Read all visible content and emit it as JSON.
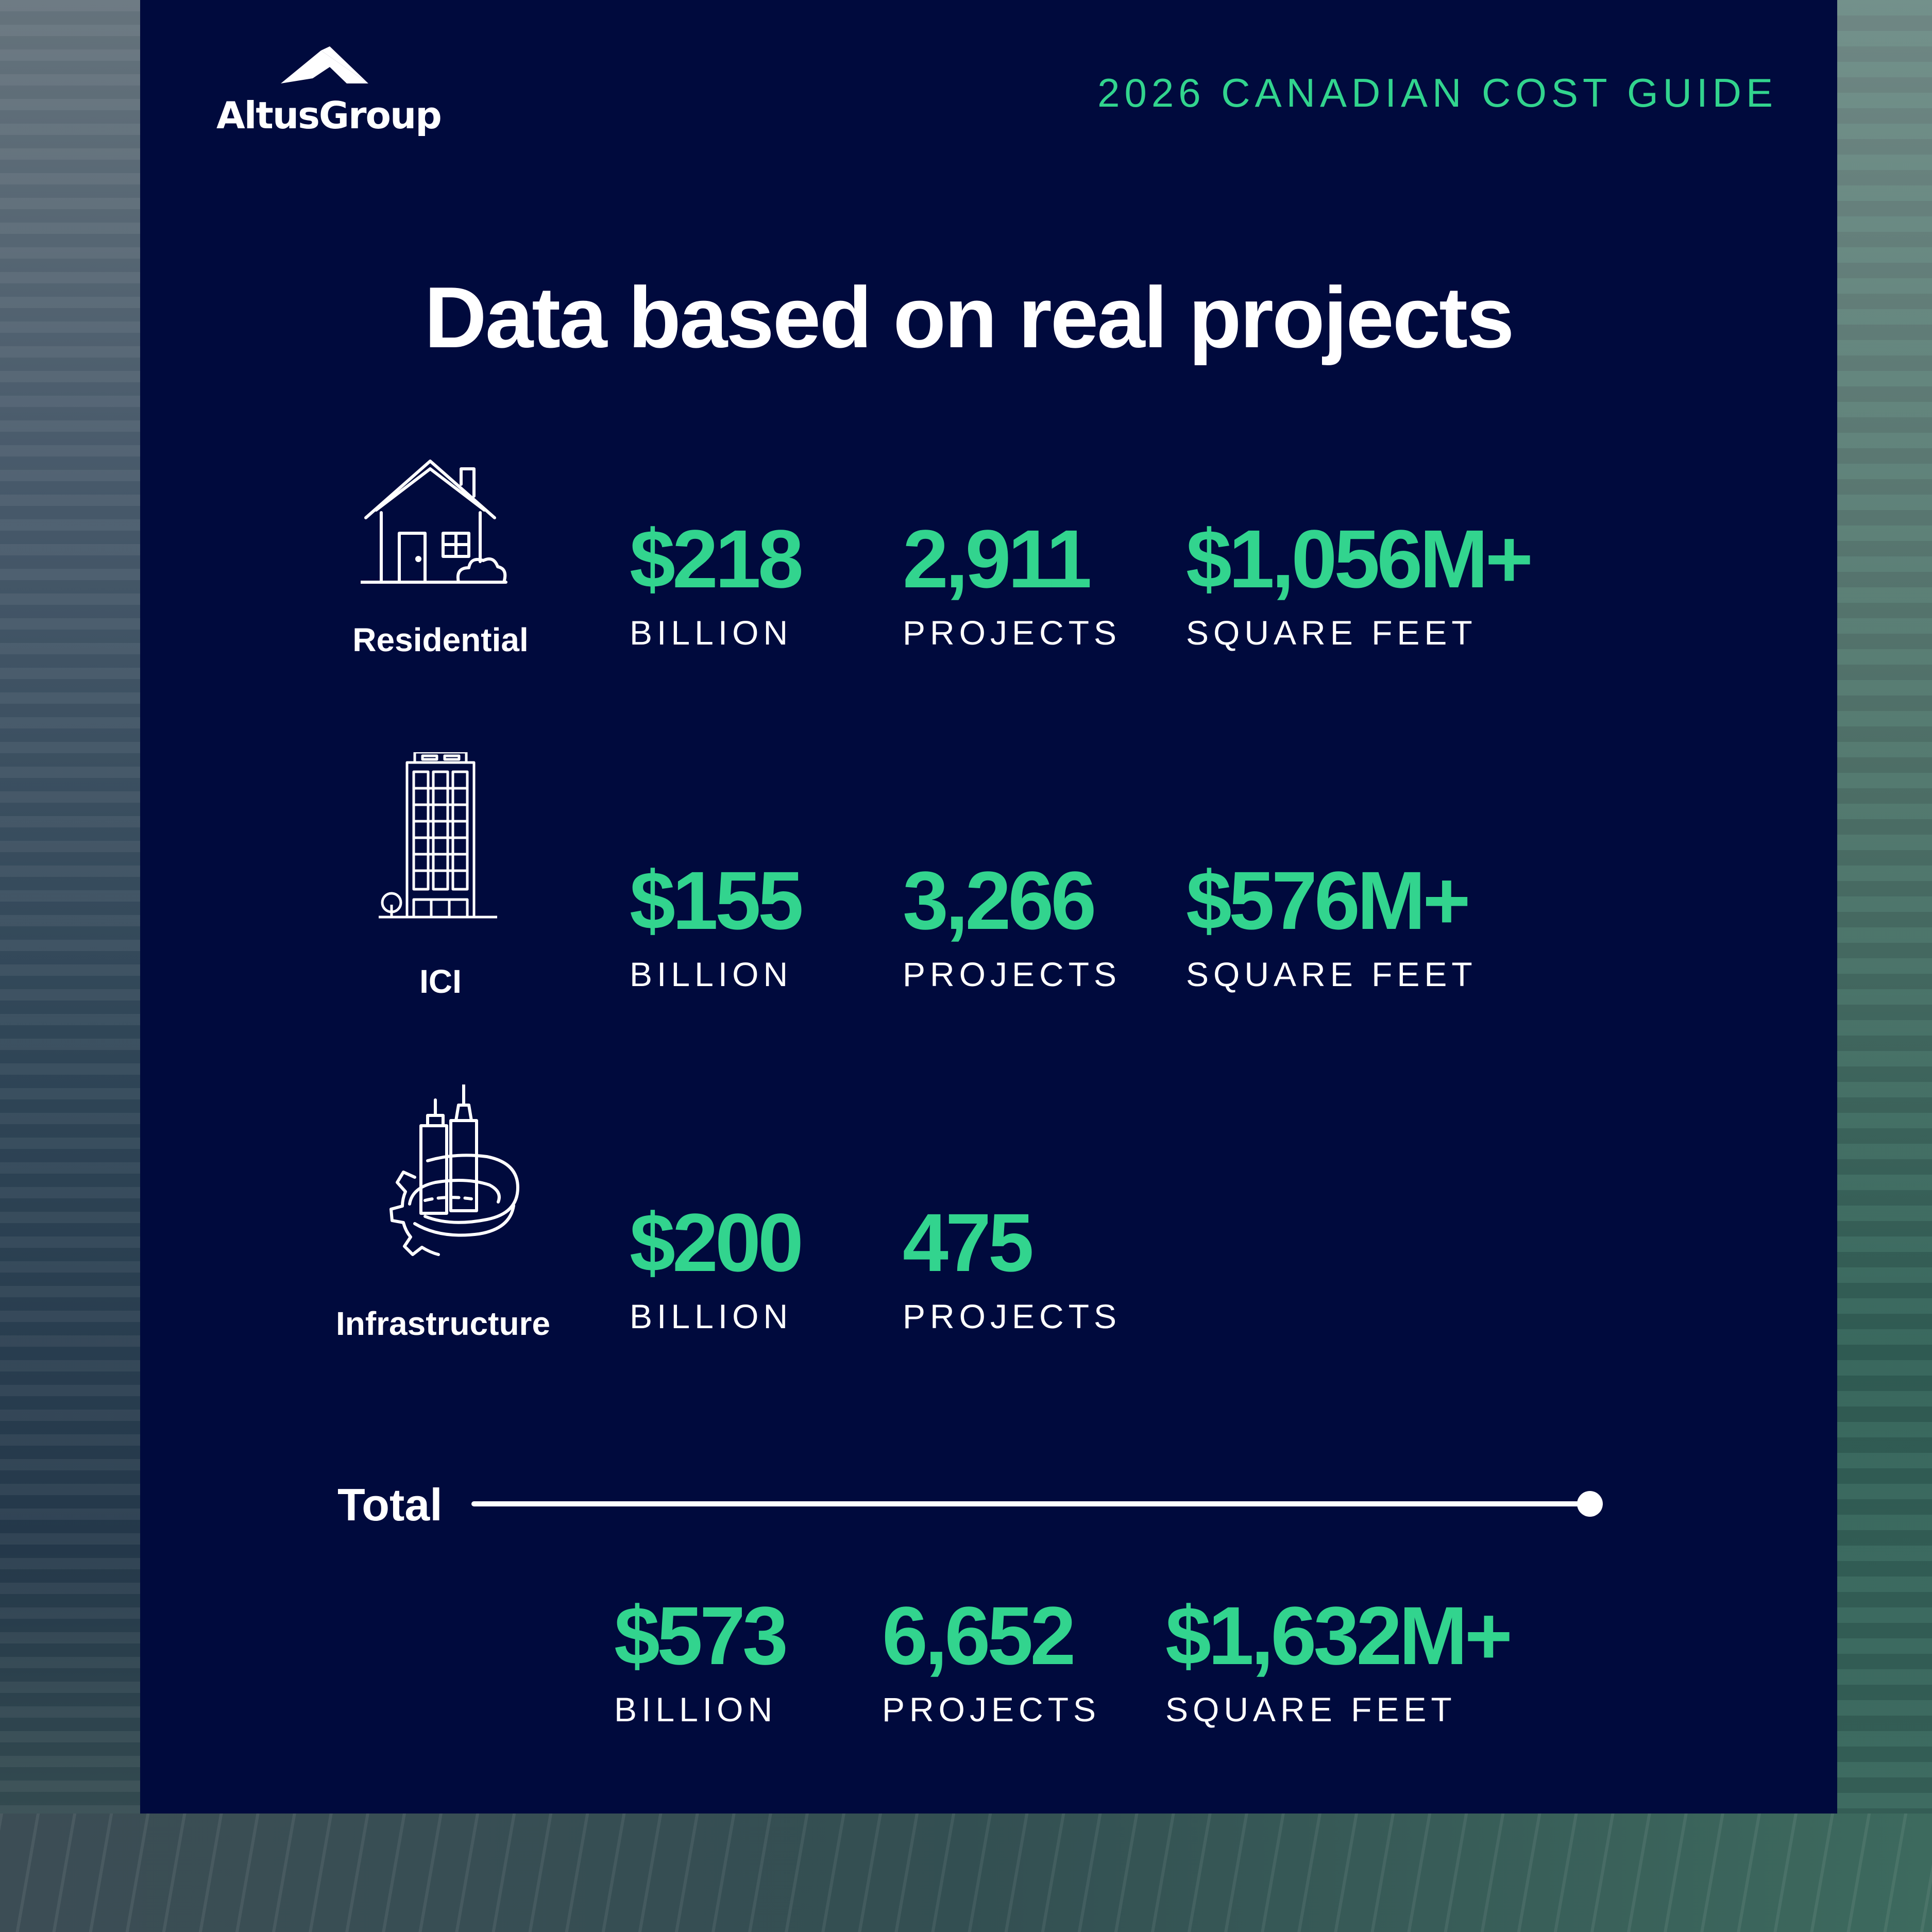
{
  "brand": {
    "name": "AltusGroup"
  },
  "header": {
    "guide_title": "2026 CANADIAN COST GUIDE"
  },
  "main": {
    "heading": "Data based on real projects",
    "categories": [
      {
        "label": "Residential",
        "icon": "house-icon",
        "stats": [
          {
            "value": "$218",
            "unit": "BILLION"
          },
          {
            "value": "2,911",
            "unit": "PROJECTS"
          },
          {
            "value": "$1,056M+",
            "unit": "SQUARE FEET"
          }
        ]
      },
      {
        "label": "ICI",
        "icon": "office-building-icon",
        "stats": [
          {
            "value": "$155",
            "unit": "BILLION"
          },
          {
            "value": "3,266",
            "unit": "PROJECTS"
          },
          {
            "value": "$576M+",
            "unit": "SQUARE FEET"
          }
        ]
      },
      {
        "label": "Infrastructure",
        "icon": "infrastructure-gear-icon",
        "stats": [
          {
            "value": "$200",
            "unit": "BILLION"
          },
          {
            "value": "475",
            "unit": "PROJECTS"
          }
        ]
      }
    ],
    "total": {
      "label": "Total",
      "stats": [
        {
          "value": "$573",
          "unit": "BILLION"
        },
        {
          "value": "6,652",
          "unit": "PROJECTS"
        },
        {
          "value": "$1,632M+",
          "unit": "SQUARE FEET"
        }
      ]
    }
  },
  "colors": {
    "panel": "#000a3d",
    "accent_green": "#32d48e",
    "text_white": "#ffffff"
  }
}
